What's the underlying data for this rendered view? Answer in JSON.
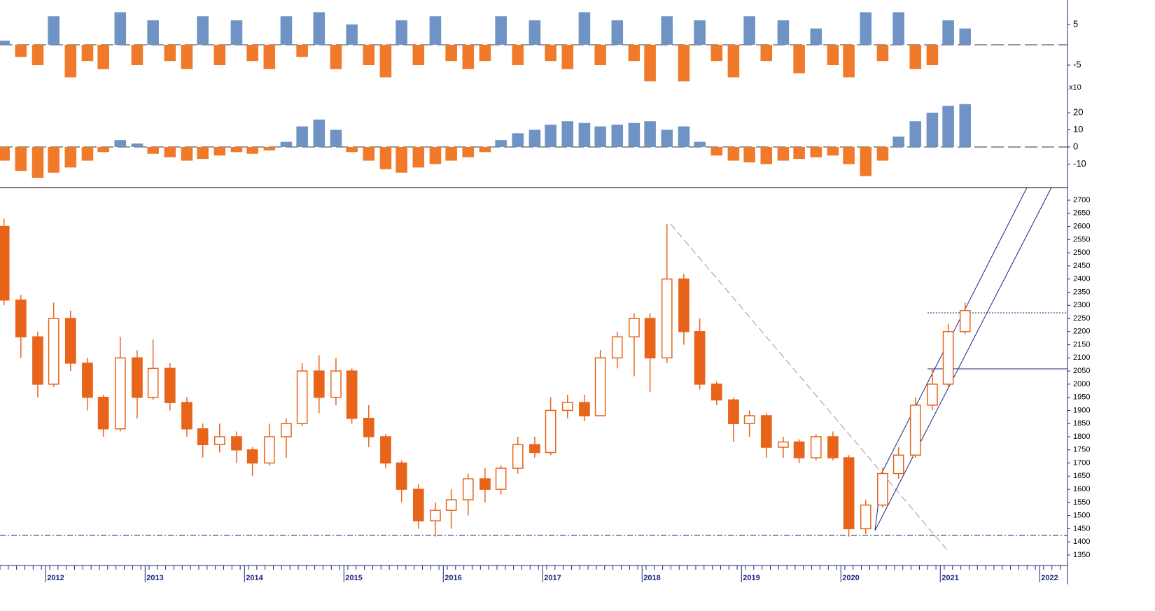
{
  "chart_data": [
    {
      "type": "candlestick",
      "color": "#e8641a",
      "x": [
        2011.58,
        2011.75,
        2011.92,
        2012.08,
        2012.25,
        2012.42,
        2012.58,
        2012.75,
        2012.92,
        2013.08,
        2013.25,
        2013.42,
        2013.58,
        2013.75,
        2013.92,
        2014.08,
        2014.25,
        2014.42,
        2014.58,
        2014.75,
        2014.92,
        2015.08,
        2015.25,
        2015.42,
        2015.58,
        2015.75,
        2015.92,
        2016.08,
        2016.25,
        2016.42,
        2016.58,
        2016.75,
        2016.92,
        2017.08,
        2017.25,
        2017.42,
        2017.58,
        2017.75,
        2017.92,
        2018.08,
        2018.25,
        2018.42,
        2018.58,
        2018.75,
        2018.92,
        2019.08,
        2019.25,
        2019.42,
        2019.58,
        2019.75,
        2019.92,
        2020.08,
        2020.25,
        2020.42,
        2020.58,
        2020.75,
        2020.92,
        2021.08,
        2021.25
      ],
      "open": [
        2600,
        2320,
        2180,
        2000,
        2250,
        2080,
        1950,
        1830,
        2100,
        1950,
        2060,
        1930,
        1830,
        1770,
        1800,
        1750,
        1700,
        1800,
        1850,
        2050,
        1950,
        2050,
        1870,
        1800,
        1700,
        1600,
        1480,
        1520,
        1560,
        1640,
        1600,
        1680,
        1770,
        1740,
        1900,
        1930,
        1880,
        2100,
        2180,
        2250,
        2100,
        2400,
        2200,
        2000,
        1940,
        1850,
        1880,
        1760,
        1780,
        1720,
        1800,
        1720,
        1450,
        1540,
        1660,
        1730,
        1920,
        2000,
        2200
      ],
      "high": [
        2630,
        2340,
        2200,
        2310,
        2280,
        2100,
        1960,
        2180,
        2130,
        2170,
        2080,
        1950,
        1850,
        1850,
        1820,
        1760,
        1850,
        1870,
        2080,
        2110,
        2100,
        2060,
        1920,
        1810,
        1710,
        1620,
        1550,
        1600,
        1660,
        1680,
        1690,
        1800,
        1800,
        1950,
        1960,
        1960,
        2130,
        2200,
        2270,
        2270,
        2610,
        2420,
        2250,
        2010,
        1950,
        1900,
        1890,
        1800,
        1790,
        1810,
        1820,
        1730,
        1560,
        1680,
        1760,
        1950,
        2060,
        2230,
        2310
      ],
      "low": [
        2300,
        2100,
        1950,
        1990,
        2050,
        1900,
        1800,
        1820,
        1870,
        1940,
        1900,
        1800,
        1720,
        1740,
        1700,
        1650,
        1690,
        1720,
        1840,
        1890,
        1920,
        1850,
        1760,
        1680,
        1550,
        1450,
        1420,
        1450,
        1500,
        1550,
        1580,
        1660,
        1720,
        1730,
        1870,
        1860,
        1880,
        2060,
        2030,
        1970,
        2080,
        2150,
        1980,
        1920,
        1780,
        1800,
        1720,
        1720,
        1700,
        1710,
        1710,
        1420,
        1430,
        1530,
        1640,
        1720,
        1900,
        1990,
        2190
      ],
      "close": [
        2320,
        2180,
        2000,
        2250,
        2080,
        1950,
        1830,
        2100,
        1950,
        2060,
        1930,
        1830,
        1770,
        1800,
        1750,
        1700,
        1800,
        1850,
        2050,
        1950,
        2050,
        1870,
        1800,
        1700,
        1600,
        1480,
        1520,
        1560,
        1640,
        1600,
        1680,
        1770,
        1740,
        1900,
        1930,
        1880,
        2100,
        2180,
        2250,
        2100,
        2400,
        2200,
        2000,
        1940,
        1850,
        1880,
        1760,
        1780,
        1720,
        1800,
        1720,
        1450,
        1540,
        1660,
        1730,
        1920,
        2000,
        2200,
        2280
      ],
      "xlim": [
        2011.54,
        2022.28
      ],
      "xticks": [
        2012,
        2013,
        2014,
        2015,
        2016,
        2017,
        2018,
        2019,
        2020,
        2021,
        2022
      ],
      "ylim": [
        1310,
        2748
      ],
      "yticks": [
        1350,
        1400,
        1450,
        1500,
        1550,
        1600,
        1650,
        1700,
        1750,
        1800,
        1850,
        1900,
        1950,
        2000,
        2050,
        2100,
        2150,
        2200,
        2250,
        2300,
        2350,
        2400,
        2450,
        2500,
        2550,
        2600,
        2650,
        2700
      ]
    },
    {
      "type": "bar",
      "pos_color": "#6f93c4",
      "neg_color": "#f07a2a",
      "x": [
        2011.58,
        2011.75,
        2011.92,
        2012.08,
        2012.25,
        2012.42,
        2012.58,
        2012.75,
        2012.92,
        2013.08,
        2013.25,
        2013.42,
        2013.58,
        2013.75,
        2013.92,
        2014.08,
        2014.25,
        2014.42,
        2014.58,
        2014.75,
        2014.92,
        2015.08,
        2015.25,
        2015.42,
        2015.58,
        2015.75,
        2015.92,
        2016.08,
        2016.25,
        2016.42,
        2016.58,
        2016.75,
        2016.92,
        2017.08,
        2017.25,
        2017.42,
        2017.58,
        2017.75,
        2017.92,
        2018.08,
        2018.25,
        2018.42,
        2018.58,
        2018.75,
        2018.92,
        2019.08,
        2019.25,
        2019.42,
        2019.58,
        2019.75,
        2019.92,
        2020.08,
        2020.25,
        2020.42,
        2020.58,
        2020.75,
        2020.92,
        2021.08,
        2021.25
      ],
      "values": [
        1,
        -3,
        -5,
        7,
        -8,
        -4,
        -6,
        8,
        -5,
        6,
        -4,
        -6,
        7,
        -5,
        6,
        -4,
        -6,
        7,
        -3,
        8,
        -6,
        5,
        -5,
        -8,
        6,
        -5,
        7,
        -4,
        -6,
        -4,
        7,
        -5,
        6,
        -4,
        -6,
        8,
        -5,
        6,
        -4,
        -9,
        7,
        -9,
        6,
        -4,
        -8,
        7,
        -4,
        6,
        -7,
        4,
        -5,
        -8,
        8,
        -4,
        8,
        -6,
        -5,
        6,
        4
      ],
      "xlim": [
        2011.54,
        2022.28
      ],
      "ylim": [
        -10.5,
        11
      ],
      "yticks": [
        5,
        -5
      ]
    },
    {
      "type": "bar",
      "pos_color": "#6f93c4",
      "neg_color": "#f07a2a",
      "label": "x10",
      "x": [
        2011.58,
        2011.75,
        2011.92,
        2012.08,
        2012.25,
        2012.42,
        2012.58,
        2012.75,
        2012.92,
        2013.08,
        2013.25,
        2013.42,
        2013.58,
        2013.75,
        2013.92,
        2014.08,
        2014.25,
        2014.42,
        2014.58,
        2014.75,
        2014.92,
        2015.08,
        2015.25,
        2015.42,
        2015.58,
        2015.75,
        2015.92,
        2016.08,
        2016.25,
        2016.42,
        2016.58,
        2016.75,
        2016.92,
        2017.08,
        2017.25,
        2017.42,
        2017.58,
        2017.75,
        2017.92,
        2018.08,
        2018.25,
        2018.42,
        2018.58,
        2018.75,
        2018.92,
        2019.08,
        2019.25,
        2019.42,
        2019.58,
        2019.75,
        2019.92,
        2020.08,
        2020.25,
        2020.42,
        2020.58,
        2020.75,
        2020.92,
        2021.08,
        2021.25
      ],
      "values": [
        -8,
        -14,
        -18,
        -15,
        -12,
        -8,
        -3,
        4,
        2,
        -4,
        -6,
        -8,
        -7,
        -5,
        -3,
        -4,
        -2,
        3,
        12,
        16,
        10,
        -3,
        -8,
        -13,
        -15,
        -12,
        -10,
        -8,
        -6,
        -3,
        4,
        8,
        10,
        13,
        15,
        14,
        12,
        13,
        14,
        15,
        10,
        12,
        3,
        -5,
        -8,
        -9,
        -10,
        -8,
        -7,
        -6,
        -5,
        -10,
        -17,
        -8,
        6,
        15,
        20,
        24,
        25
      ],
      "xlim": [
        2011.54,
        2022.28
      ],
      "ylim": [
        -23.7,
        34.7
      ],
      "yticks": [
        -10,
        0,
        10,
        20
      ]
    }
  ]
}
